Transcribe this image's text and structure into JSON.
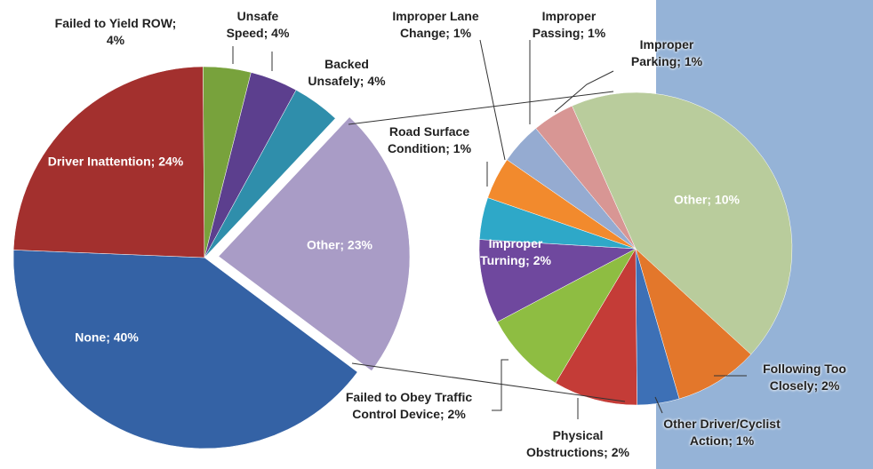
{
  "chart_data": [
    {
      "type": "pie",
      "categories": [
        "Other",
        "None",
        "Driver Inattention",
        "Failed to Yield ROW",
        "Unsafe Speed",
        "Backed Unsafely"
      ],
      "values": [
        23,
        40,
        24,
        4,
        4,
        4
      ],
      "value_labels": [
        "Other; 23%",
        "None; 40%",
        "Driver Inattention; 24%",
        "Failed to Yield ROW; 4%",
        "Unsafe Speed; 4%",
        "Backed Unsafely; 4%"
      ],
      "colors": [
        "#a99cc6",
        "#3462a5",
        "#a3302e",
        "#78a23c",
        "#5c3f8e",
        "#2f8eab"
      ]
    },
    {
      "type": "pie",
      "categories": [
        "Other",
        "Following Too Closely",
        "Other Driver/Cyclist Action",
        "Physical Obstructions",
        "Failed to Obey Traffic Control Device",
        "Improper Turning",
        "Road Surface Condition",
        "Improper Lane Change",
        "Improper Passing",
        "Improper Parking"
      ],
      "values": [
        10,
        2,
        1,
        2,
        2,
        2,
        1,
        1,
        1,
        1
      ],
      "value_labels": [
        "Other; 10%",
        "Following Too Closely; 2%",
        "Other Driver/Cyclist Action; 1%",
        "Physical Obstructions; 2%",
        "Failed to Obey Traffic Control Device; 2%",
        "Improper Turning; 2%",
        "Road Surface Condition; 1%",
        "Improper Lane Change; 1%",
        "Improper Passing; 1%",
        "Improper Parking; 1%"
      ],
      "colors": [
        "#b9cc9c",
        "#e3772b",
        "#3d70b6",
        "#c43c37",
        "#8ebd42",
        "#6f489e",
        "#2ea8c8",
        "#f28a2d",
        "#95abd1",
        "#d89694"
      ]
    }
  ]
}
